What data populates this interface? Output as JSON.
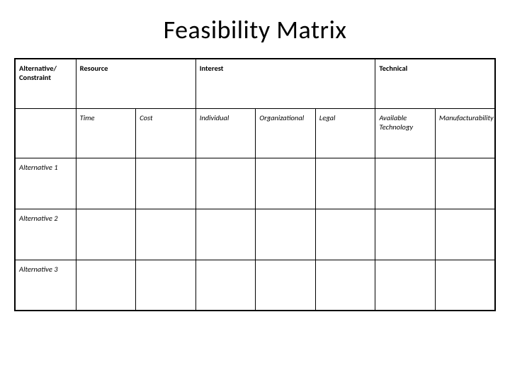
{
  "title": "Feasibility Matrix",
  "header": {
    "col1": "Alternative/ Constraint",
    "col2": "Resource",
    "col3": "Interest",
    "col4": "Technical"
  },
  "subheader": {
    "c1": "",
    "c2": "Time",
    "c3": "Cost",
    "c4": "Individual",
    "c5": "Organizational",
    "c6": "Legal",
    "c7": "Available Technology",
    "c8": "Manufacturability"
  },
  "rows": {
    "r1": "Alternative 1",
    "r2": "Alternative 2",
    "r3": "Alternative 3"
  },
  "colors": {
    "background": "#ffffff",
    "border": "#000000",
    "text": "#000000"
  },
  "fonts": {
    "title_size": 36,
    "cell_size": 10.5
  }
}
